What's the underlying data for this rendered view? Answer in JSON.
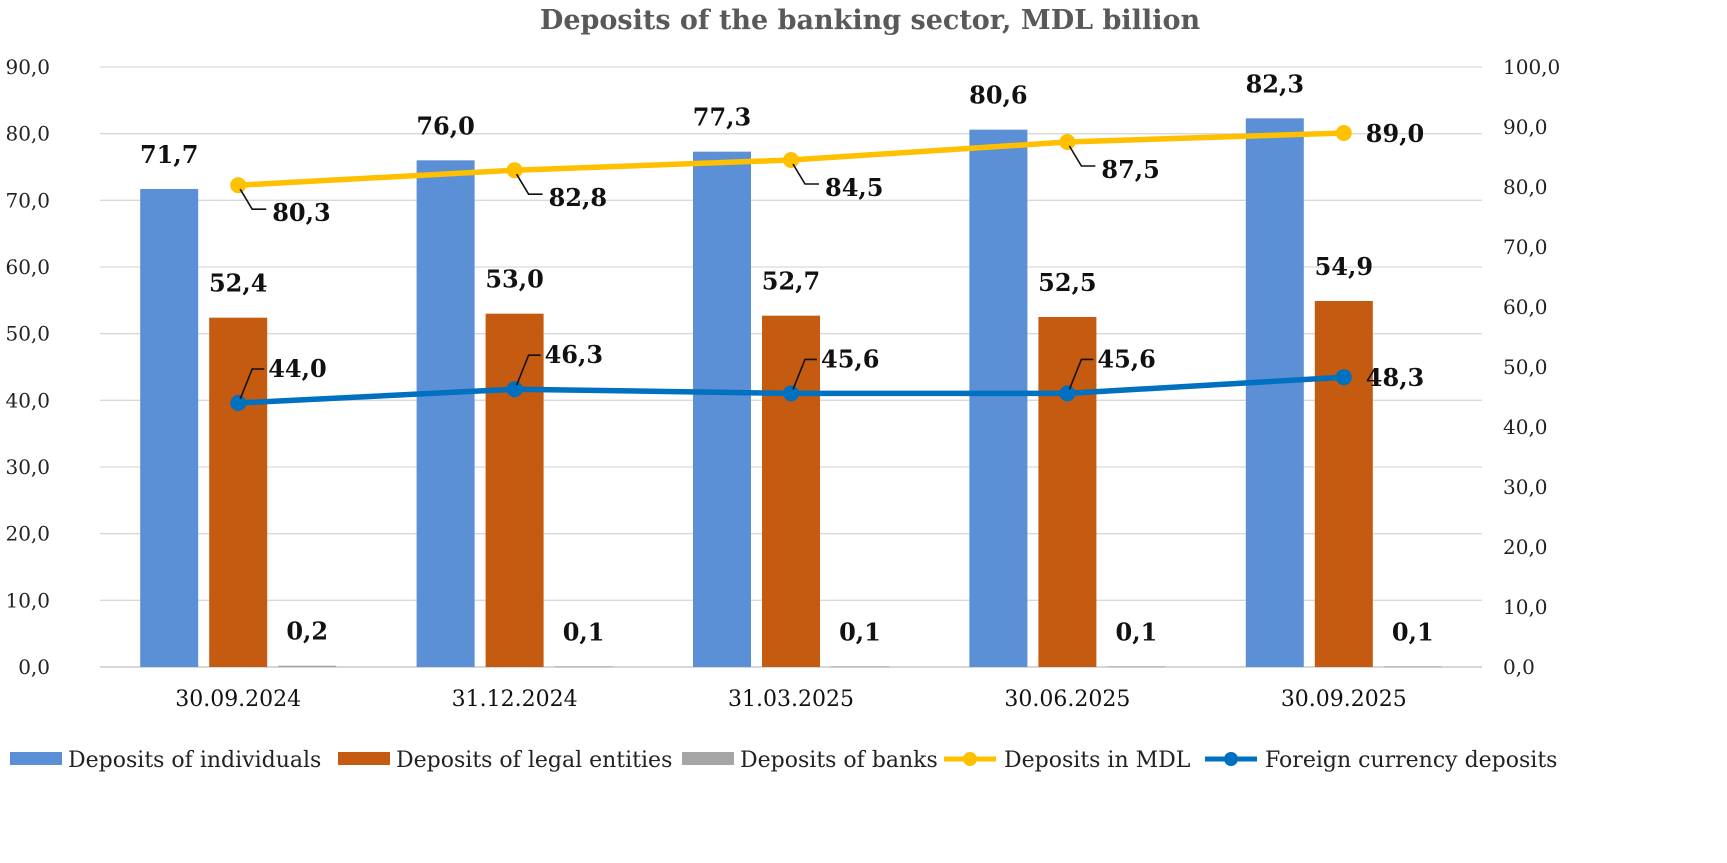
{
  "chart_data": {
    "type": "bar",
    "title": "Deposits of the banking sector, MDL billion",
    "categories": [
      "30.09.2024",
      "31.12.2024",
      "31.03.2025",
      "30.06.2025",
      "30.09.2025"
    ],
    "y_left": {
      "min": 0,
      "max": 90,
      "step": 10,
      "tick_labels": [
        "0,0",
        "10,0",
        "20,0",
        "30,0",
        "40,0",
        "50,0",
        "60,0",
        "70,0",
        "80,0",
        "90,0"
      ]
    },
    "y_right": {
      "min": 0,
      "max": 100,
      "step": 10,
      "tick_labels": [
        "0,0",
        "10,0",
        "20,0",
        "30,0",
        "40,0",
        "50,0",
        "60,0",
        "70,0",
        "80,0",
        "90,0",
        "100,0"
      ]
    },
    "grid": true,
    "legend_position": "bottom",
    "bar_series": [
      {
        "name": "Deposits of individuals",
        "color": "#5B8FD6",
        "values": [
          71.7,
          76.0,
          77.3,
          80.6,
          82.3
        ],
        "labels": [
          "71,7",
          "76,0",
          "77,3",
          "80,6",
          "82,3"
        ]
      },
      {
        "name": "Deposits of legal entities",
        "color": "#C55A11",
        "values": [
          52.4,
          53.0,
          52.7,
          52.5,
          54.9
        ],
        "labels": [
          "52,4",
          "53,0",
          "52,7",
          "52,5",
          "54,9"
        ]
      },
      {
        "name": "Deposits of banks",
        "color": "#A5A5A5",
        "values": [
          0.2,
          0.1,
          0.1,
          0.1,
          0.1
        ],
        "labels": [
          "0,2",
          "0,1",
          "0,1",
          "0,1",
          "0,1"
        ]
      }
    ],
    "line_series": [
      {
        "name": "Deposits in MDL",
        "color": "#FFC000",
        "axis": "right",
        "values": [
          80.3,
          82.8,
          84.5,
          87.5,
          89.0
        ],
        "labels": [
          "80,3",
          "82,8",
          "84,5",
          "87,5",
          "89,0"
        ]
      },
      {
        "name": "Foreign currency deposits",
        "color": "#0070C0",
        "axis": "right",
        "values": [
          44.0,
          46.3,
          45.6,
          45.6,
          48.3
        ],
        "labels": [
          "44,0",
          "46,3",
          "45,6",
          "45,6",
          "48,3"
        ]
      }
    ]
  }
}
